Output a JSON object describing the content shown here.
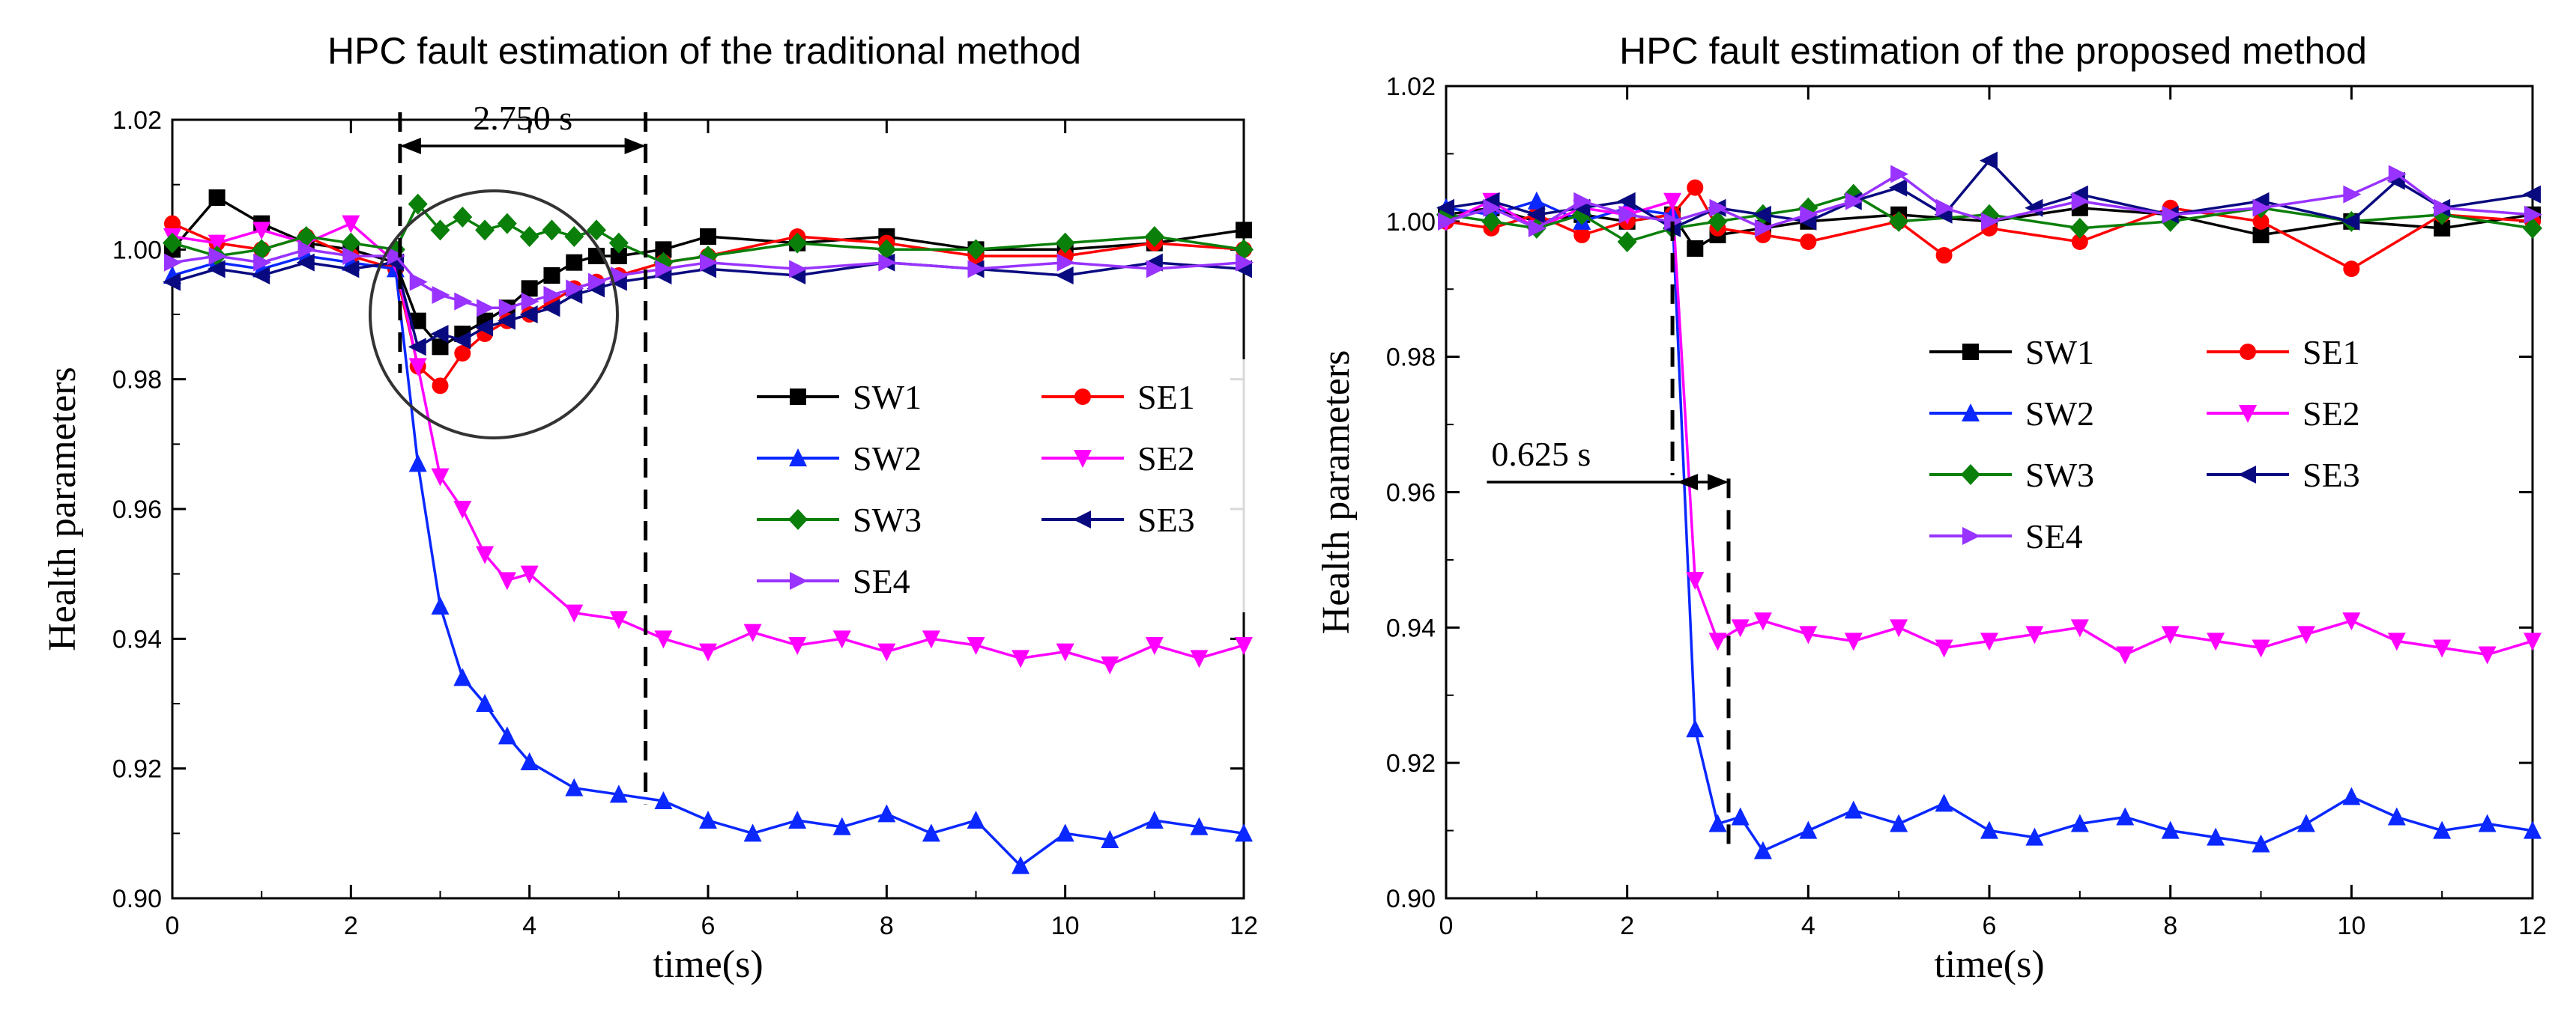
{
  "chart_data": [
    {
      "type": "line",
      "title": "HPC fault estimation of the traditional method",
      "xlabel": "time(s)",
      "ylabel": "Health parameters",
      "xlim": [
        0,
        12
      ],
      "ylim": [
        0.9,
        1.02
      ],
      "xticks": [
        0,
        2,
        4,
        6,
        8,
        10,
        12
      ],
      "yticks": [
        0.9,
        0.92,
        0.94,
        0.96,
        0.98,
        1.0,
        1.02
      ],
      "legend_columns": 2,
      "legend_position": "right-middle",
      "annotation": {
        "label": "2.750 s",
        "x_start": 2.55,
        "x_end": 5.3
      },
      "circle_highlight": {
        "center_x": 3.6,
        "center_y": 0.99
      },
      "series": [
        {
          "name": "SW1",
          "color": "#000000",
          "marker": "square",
          "x": [
            0,
            0.5,
            1,
            1.5,
            2,
            2.5,
            2.75,
            3.0,
            3.25,
            3.5,
            3.75,
            4.0,
            4.25,
            4.5,
            4.75,
            5.0,
            5.5,
            6,
            7,
            8,
            9,
            10,
            11,
            12
          ],
          "values": [
            1.0,
            1.008,
            1.004,
            1.001,
            1.0,
            0.998,
            0.989,
            0.985,
            0.987,
            0.989,
            0.991,
            0.994,
            0.996,
            0.998,
            0.999,
            0.999,
            1.0,
            1.002,
            1.001,
            1.002,
            1.0,
            1.0,
            1.001,
            1.003
          ]
        },
        {
          "name": "SE1",
          "color": "#ff0000",
          "marker": "circle",
          "x": [
            0,
            0.5,
            1,
            1.5,
            2,
            2.5,
            2.75,
            3.0,
            3.25,
            3.5,
            3.75,
            4.0,
            4.25,
            4.5,
            4.75,
            5.0,
            5.5,
            6,
            7,
            8,
            9,
            10,
            11,
            12
          ],
          "values": [
            1.004,
            1.001,
            1.0,
            1.002,
            0.999,
            0.997,
            0.982,
            0.979,
            0.984,
            0.987,
            0.989,
            0.99,
            0.992,
            0.994,
            0.995,
            0.996,
            0.998,
            0.999,
            1.002,
            1.001,
            0.999,
            0.999,
            1.001,
            1.0
          ]
        },
        {
          "name": "SW2",
          "color": "#0a28ff",
          "marker": "triangle-up",
          "x": [
            0,
            0.5,
            1,
            1.5,
            2,
            2.5,
            2.75,
            3.0,
            3.25,
            3.5,
            3.75,
            4.0,
            4.5,
            5.0,
            5.5,
            6,
            6.5,
            7,
            7.5,
            8,
            8.5,
            9,
            9.5,
            10,
            10.5,
            11,
            11.5,
            12
          ],
          "values": [
            0.996,
            0.998,
            0.997,
            0.999,
            0.998,
            0.997,
            0.967,
            0.945,
            0.934,
            0.93,
            0.925,
            0.921,
            0.917,
            0.916,
            0.915,
            0.912,
            0.91,
            0.912,
            0.911,
            0.913,
            0.91,
            0.912,
            0.905,
            0.91,
            0.909,
            0.912,
            0.911,
            0.91
          ]
        },
        {
          "name": "SE2",
          "color": "#ff00ff",
          "marker": "triangle-down",
          "x": [
            0,
            0.5,
            1,
            1.5,
            2,
            2.5,
            2.75,
            3.0,
            3.25,
            3.5,
            3.75,
            4.0,
            4.5,
            5.0,
            5.5,
            6,
            6.5,
            7,
            7.5,
            8,
            8.5,
            9,
            9.5,
            10,
            10.5,
            11,
            11.5,
            12
          ],
          "values": [
            1.002,
            1.001,
            1.003,
            1.001,
            1.004,
            0.998,
            0.982,
            0.965,
            0.96,
            0.953,
            0.949,
            0.95,
            0.944,
            0.943,
            0.94,
            0.938,
            0.941,
            0.939,
            0.94,
            0.938,
            0.94,
            0.939,
            0.937,
            0.938,
            0.936,
            0.939,
            0.937,
            0.939
          ]
        },
        {
          "name": "SW3",
          "color": "#0a7f0a",
          "marker": "diamond",
          "x": [
            0,
            0.5,
            1,
            1.5,
            2,
            2.5,
            2.75,
            3.0,
            3.25,
            3.5,
            3.75,
            4.0,
            4.25,
            4.5,
            4.75,
            5.0,
            5.5,
            6,
            7,
            8,
            9,
            10,
            11,
            12
          ],
          "values": [
            1.001,
            0.999,
            1.0,
            1.002,
            1.001,
            1.0,
            1.007,
            1.003,
            1.005,
            1.003,
            1.004,
            1.002,
            1.003,
            1.002,
            1.003,
            1.001,
            0.998,
            0.999,
            1.001,
            1.0,
            1.0,
            1.001,
            1.002,
            1.0
          ]
        },
        {
          "name": "SE3",
          "color": "#0a0a80",
          "marker": "triangle-left",
          "x": [
            0,
            0.5,
            1,
            1.5,
            2,
            2.5,
            2.75,
            3.0,
            3.25,
            3.5,
            3.75,
            4.0,
            4.25,
            4.5,
            4.75,
            5.0,
            5.5,
            6,
            7,
            8,
            9,
            10,
            11,
            12
          ],
          "values": [
            0.995,
            0.997,
            0.996,
            0.998,
            0.997,
            0.998,
            0.985,
            0.987,
            0.986,
            0.988,
            0.989,
            0.99,
            0.991,
            0.993,
            0.994,
            0.995,
            0.996,
            0.997,
            0.996,
            0.998,
            0.997,
            0.996,
            0.998,
            0.997
          ]
        },
        {
          "name": "SE4",
          "color": "#9933ff",
          "marker": "triangle-right",
          "x": [
            0,
            0.5,
            1,
            1.5,
            2,
            2.5,
            2.75,
            3.0,
            3.25,
            3.5,
            3.75,
            4.0,
            4.25,
            4.5,
            4.75,
            5.0,
            5.5,
            6,
            7,
            8,
            9,
            10,
            11,
            12
          ],
          "values": [
            0.998,
            0.999,
            0.998,
            1.0,
            0.999,
            0.999,
            0.995,
            0.993,
            0.992,
            0.991,
            0.991,
            0.992,
            0.993,
            0.994,
            0.995,
            0.996,
            0.997,
            0.998,
            0.997,
            0.998,
            0.997,
            0.998,
            0.997,
            0.998
          ]
        }
      ]
    },
    {
      "type": "line",
      "title": "HPC fault estimation of the proposed method",
      "xlabel": "time(s)",
      "ylabel": "Health parameters",
      "xlim": [
        0,
        12
      ],
      "ylim": [
        0.9,
        1.02
      ],
      "xticks": [
        0,
        2,
        4,
        6,
        8,
        10,
        12
      ],
      "yticks": [
        0.9,
        0.92,
        0.94,
        0.96,
        0.98,
        1.0,
        1.02
      ],
      "legend_columns": 2,
      "legend_position": "right-middle",
      "annotation": {
        "label": "0.625 s",
        "x_start": 2.5,
        "x_end": 3.12
      },
      "series": [
        {
          "name": "SW1",
          "color": "#000000",
          "marker": "square",
          "x": [
            0,
            0.5,
            1,
            1.5,
            2,
            2.5,
            2.75,
            3.0,
            3.5,
            4,
            5,
            6,
            7,
            8,
            9,
            10,
            11,
            12
          ],
          "values": [
            1.001,
            1.002,
            1.0,
            1.001,
            1.0,
            1.001,
            0.996,
            0.998,
            0.999,
            1.0,
            1.001,
            1.0,
            1.002,
            1.001,
            0.998,
            1.0,
            0.999,
            1.001
          ]
        },
        {
          "name": "SE1",
          "color": "#ff0000",
          "marker": "circle",
          "x": [
            0,
            0.5,
            1,
            1.5,
            2,
            2.5,
            2.75,
            3.0,
            3.5,
            4,
            5,
            5.5,
            6,
            7,
            8,
            9,
            10,
            11,
            12
          ],
          "values": [
            1.0,
            0.999,
            1.001,
            0.998,
            1.0,
            1.001,
            1.005,
            0.999,
            0.998,
            0.997,
            1.0,
            0.995,
            0.999,
            0.997,
            1.002,
            1.0,
            0.993,
            1.001,
            1.0
          ]
        },
        {
          "name": "SW2",
          "color": "#0a28ff",
          "marker": "triangle-up",
          "x": [
            0,
            0.5,
            1,
            1.5,
            2,
            2.5,
            2.75,
            3.0,
            3.25,
            3.5,
            4,
            4.5,
            5,
            5.5,
            6,
            6.5,
            7,
            7.5,
            8,
            8.5,
            9,
            9.5,
            10,
            10.5,
            11,
            11.5,
            12
          ],
          "values": [
            1.002,
            1.001,
            1.003,
            1.0,
            1.002,
            1.001,
            0.925,
            0.911,
            0.912,
            0.907,
            0.91,
            0.913,
            0.911,
            0.914,
            0.91,
            0.909,
            0.911,
            0.912,
            0.91,
            0.909,
            0.908,
            0.911,
            0.915,
            0.912,
            0.91,
            0.911,
            0.91
          ]
        },
        {
          "name": "SE2",
          "color": "#ff00ff",
          "marker": "triangle-down",
          "x": [
            0,
            0.5,
            1,
            1.5,
            2,
            2.5,
            2.75,
            3.0,
            3.25,
            3.5,
            4,
            4.5,
            5,
            5.5,
            6,
            6.5,
            7,
            7.5,
            8,
            8.5,
            9,
            9.5,
            10,
            10.5,
            11,
            11.5,
            12
          ],
          "values": [
            1.0,
            1.003,
            0.999,
            1.002,
            1.001,
            1.003,
            0.947,
            0.938,
            0.94,
            0.941,
            0.939,
            0.938,
            0.94,
            0.937,
            0.938,
            0.939,
            0.94,
            0.936,
            0.939,
            0.938,
            0.937,
            0.939,
            0.941,
            0.938,
            0.937,
            0.936,
            0.938
          ]
        },
        {
          "name": "SW3",
          "color": "#0a7f0a",
          "marker": "diamond",
          "x": [
            0,
            0.5,
            1,
            1.5,
            2,
            2.5,
            3.0,
            3.5,
            4,
            4.5,
            5,
            6,
            7,
            8,
            9,
            10,
            11,
            12
          ],
          "values": [
            1.001,
            1.0,
            0.999,
            1.001,
            0.997,
            0.999,
            1.0,
            1.001,
            1.002,
            1.004,
            1.0,
            1.001,
            0.999,
            1.0,
            1.002,
            1.0,
            1.001,
            0.999
          ]
        },
        {
          "name": "SE3",
          "color": "#0a0a80",
          "marker": "triangle-left",
          "x": [
            0,
            0.5,
            1,
            1.5,
            2,
            2.5,
            3.0,
            3.5,
            4,
            4.5,
            5,
            5.5,
            6,
            6.5,
            7,
            8,
            9,
            10,
            10.5,
            11,
            12
          ],
          "values": [
            1.002,
            1.003,
            1.001,
            1.002,
            1.003,
            0.999,
            1.002,
            1.001,
            1.0,
            1.003,
            1.005,
            1.001,
            1.009,
            1.002,
            1.004,
            1.001,
            1.003,
            1.0,
            1.006,
            1.002,
            1.004
          ]
        },
        {
          "name": "SE4",
          "color": "#9933ff",
          "marker": "triangle-right",
          "x": [
            0,
            0.5,
            1,
            1.5,
            2,
            2.5,
            3.0,
            3.5,
            4,
            4.5,
            5,
            5.5,
            6,
            7,
            8,
            9,
            10,
            10.5,
            11,
            12
          ],
          "values": [
            1.0,
            1.002,
            0.999,
            1.003,
            1.001,
            1.0,
            1.002,
            0.999,
            1.001,
            1.003,
            1.007,
            1.002,
            1.0,
            1.003,
            1.001,
            1.002,
            1.004,
            1.007,
            1.002,
            1.001
          ]
        }
      ]
    }
  ]
}
